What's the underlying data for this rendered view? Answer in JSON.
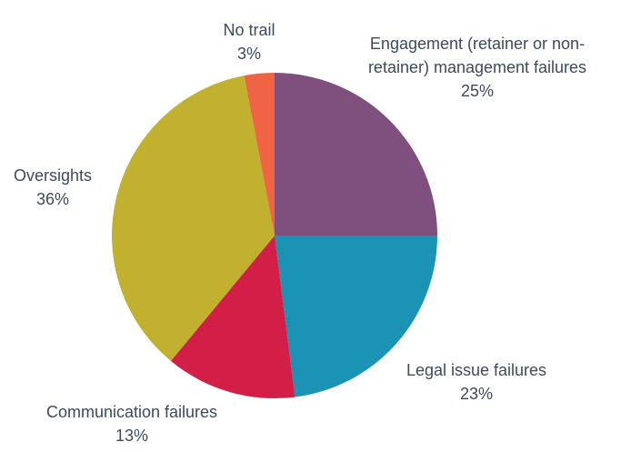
{
  "chart_data": {
    "type": "pie",
    "categories": [
      "Engagement (retainer or non-retainer) management failures",
      "Legal issue failures",
      "Communication failures",
      "Oversights",
      "No trail"
    ],
    "values": [
      25,
      23,
      13,
      36,
      3
    ],
    "value_labels": [
      "25%",
      "23%",
      "13%",
      "36%",
      "3%"
    ],
    "colors": [
      "#7f4f7e",
      "#1a93b5",
      "#d31f48",
      "#c2b12f",
      "#ef6445"
    ]
  }
}
